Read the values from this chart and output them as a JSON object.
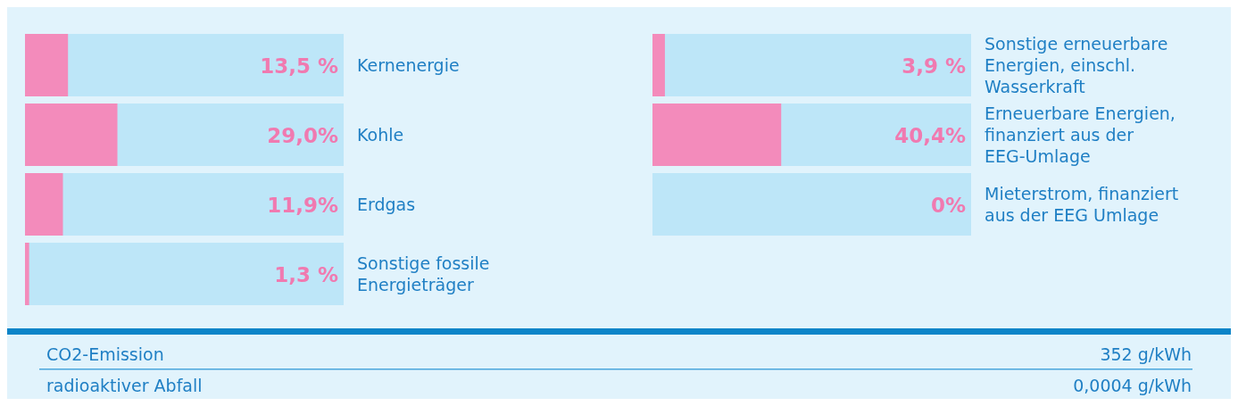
{
  "chart_data": [
    {
      "type": "bar",
      "orientation": "horizontal",
      "categories": [
        "Kernenergie",
        "Kohle",
        "Erdgas",
        "Sonstige fossile Energieträger"
      ],
      "values": [
        13.5,
        29.0,
        11.9,
        1.3
      ],
      "value_labels": [
        "13,5 %",
        "29,0%",
        "11,9%",
        "1,3 %"
      ],
      "color": "#f38bbb",
      "xlim": [
        0,
        100
      ],
      "tick_labels": false,
      "bands": [
        {
          "axis": "x",
          "from": 0,
          "to": 100,
          "color": "#bde6f8"
        }
      ]
    },
    {
      "type": "bar",
      "orientation": "horizontal",
      "categories": [
        "Sonstige erneuerbare Energien, einschl. Wasserkraft",
        "Erneuerbare Energien, finanziert aus der EEG-Umlage",
        "Mieterstrom, finanziert aus der EEG Umlage"
      ],
      "values": [
        3.9,
        40.4,
        0
      ],
      "value_labels": [
        "3,9 %",
        "40,4%",
        "0%"
      ],
      "color": "#f38bbb",
      "xlim": [
        0,
        100
      ],
      "tick_labels": false,
      "bands": [
        {
          "axis": "x",
          "from": 0,
          "to": 100,
          "color": "#bde6f8"
        }
      ]
    },
    {
      "type": "other",
      "annotations": [
        "CO2-Emission",
        "352 g/kWh",
        "radioaktiver Abfall",
        "0,0004 g/kWh"
      ]
    }
  ]
}
